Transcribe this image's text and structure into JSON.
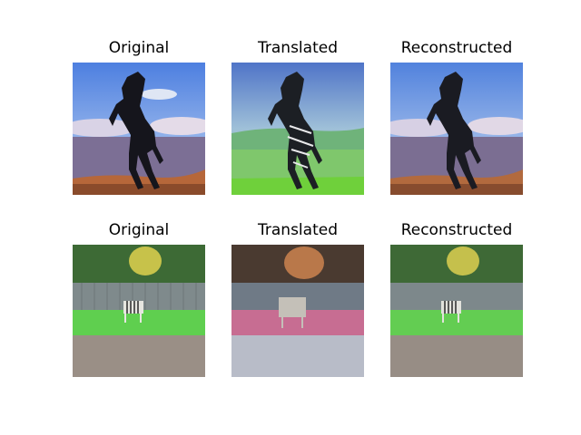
{
  "figure": {
    "rows": [
      {
        "subject": "horse",
        "panels": [
          {
            "title": "Original",
            "style": "original"
          },
          {
            "title": "Translated",
            "style": "translated"
          },
          {
            "title": "Reconstructed",
            "style": "reconstructed"
          }
        ]
      },
      {
        "subject": "zebra",
        "panels": [
          {
            "title": "Original",
            "style": "original"
          },
          {
            "title": "Translated",
            "style": "translated"
          },
          {
            "title": "Reconstructed",
            "style": "reconstructed"
          }
        ]
      }
    ]
  }
}
